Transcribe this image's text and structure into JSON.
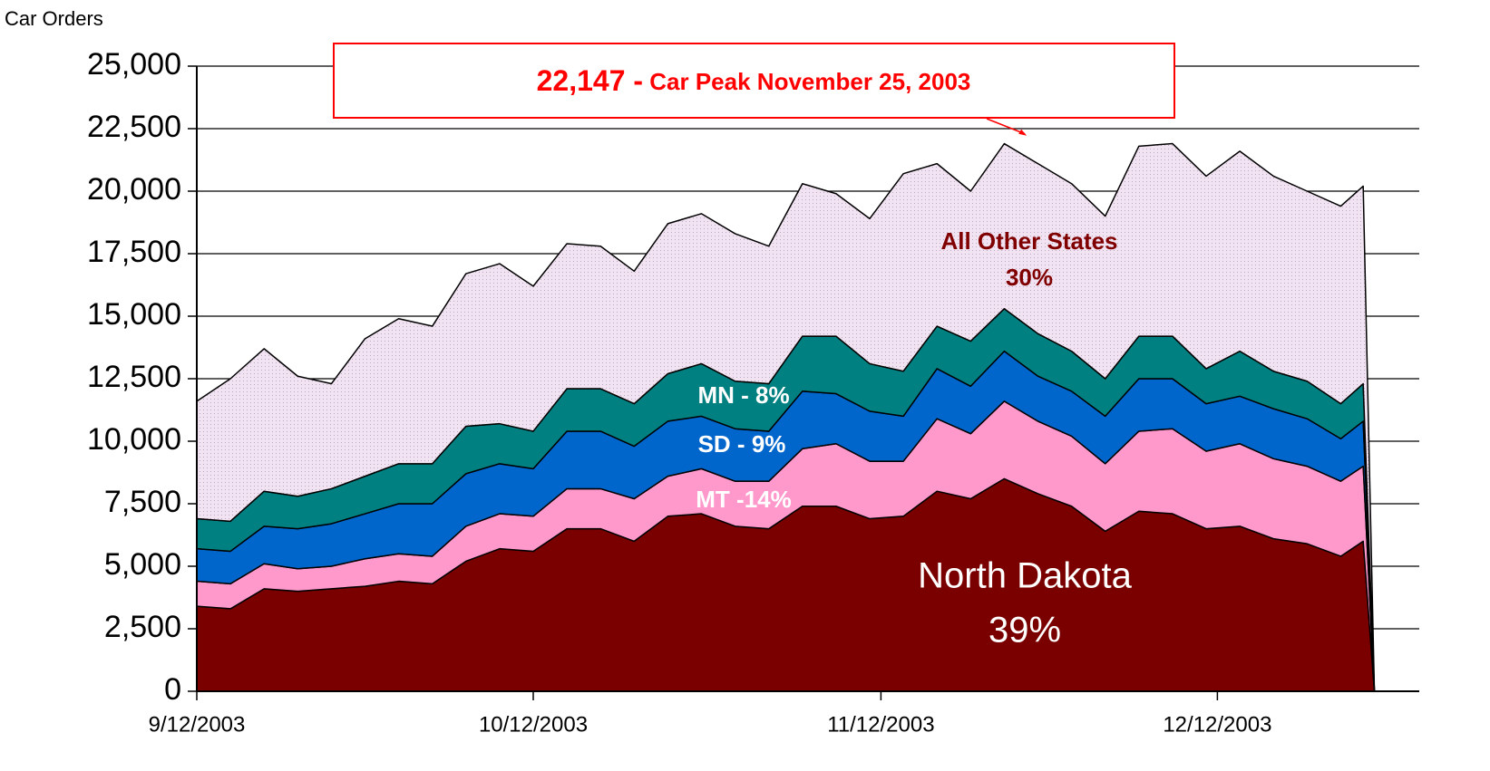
{
  "chart_data": {
    "type": "stacked_area",
    "y_axis_label": "Car Orders",
    "x": [
      "9/12/2003",
      "9/15/2003",
      "9/18/2003",
      "9/21/2003",
      "9/24/2003",
      "9/27/2003",
      "9/30/2003",
      "10/3/2003",
      "10/6/2003",
      "10/9/2003",
      "10/12/2003",
      "10/15/2003",
      "10/18/2003",
      "10/21/2003",
      "10/24/2003",
      "10/27/2003",
      "10/30/2003",
      "11/2/2003",
      "11/5/2003",
      "11/8/2003",
      "11/11/2003",
      "11/14/2003",
      "11/17/2003",
      "11/20/2003",
      "11/23/2003",
      "11/26/2003",
      "11/29/2003",
      "12/2/2003",
      "12/5/2003",
      "12/8/2003",
      "12/11/2003",
      "12/14/2003",
      "12/17/2003",
      "12/20/2003",
      "12/23/2003",
      "12/25/2003",
      "12/26/2003"
    ],
    "series": [
      {
        "name": "North Dakota",
        "share": "39%",
        "color": "#7a0000",
        "label_color": "#ffffff",
        "values": [
          3400,
          3300,
          4100,
          4000,
          4100,
          4200,
          4400,
          4300,
          5200,
          5700,
          5600,
          6500,
          6500,
          6000,
          7000,
          7100,
          6600,
          6500,
          7400,
          7400,
          6900,
          7000,
          8000,
          7700,
          8500,
          7900,
          7400,
          6400,
          7200,
          7100,
          6500,
          6600,
          6100,
          5900,
          5400,
          6000,
          0
        ]
      },
      {
        "name": "MT -14%",
        "color": "#ff99cc",
        "label_color": "#ffffff",
        "values": [
          1000,
          1000,
          1000,
          900,
          900,
          1100,
          1100,
          1100,
          1400,
          1400,
          1400,
          1600,
          1600,
          1700,
          1600,
          1800,
          1800,
          1900,
          2300,
          2500,
          2300,
          2200,
          2900,
          2600,
          3100,
          2900,
          2800,
          2700,
          3200,
          3400,
          3100,
          3300,
          3200,
          3100,
          3000,
          3000,
          0
        ]
      },
      {
        "name": "SD - 9%",
        "color": "#0066cc",
        "label_color": "#ffffff",
        "values": [
          1300,
          1300,
          1500,
          1600,
          1700,
          1800,
          2000,
          2100,
          2100,
          2000,
          1900,
          2300,
          2300,
          2100,
          2200,
          2100,
          2100,
          2000,
          2300,
          2000,
          2000,
          1800,
          2000,
          1900,
          2000,
          1800,
          1800,
          1900,
          2100,
          2000,
          1900,
          1900,
          2000,
          1900,
          1700,
          1800,
          0
        ]
      },
      {
        "name": "MN - 8%",
        "color": "#008080",
        "label_color": "#ffffff",
        "values": [
          1200,
          1200,
          1400,
          1300,
          1400,
          1500,
          1600,
          1600,
          1900,
          1600,
          1500,
          1700,
          1700,
          1700,
          1900,
          2100,
          1900,
          1900,
          2200,
          2300,
          1900,
          1800,
          1700,
          1800,
          1700,
          1700,
          1600,
          1500,
          1700,
          1700,
          1400,
          1800,
          1500,
          1500,
          1400,
          1500,
          0
        ]
      },
      {
        "name": "All Other States",
        "share": "30%",
        "color": "#f1e3f1",
        "label_color": "#800000",
        "values": [
          4700,
          5700,
          5700,
          4800,
          4200,
          5500,
          5800,
          5500,
          6100,
          6400,
          5800,
          5800,
          5700,
          5300,
          6000,
          6000,
          5900,
          5500,
          6100,
          5700,
          5800,
          7900,
          6500,
          6000,
          6600,
          6800,
          6700,
          6500,
          7600,
          7700,
          7700,
          8000,
          7800,
          7600,
          7900,
          7900,
          0
        ]
      }
    ],
    "annotation": {
      "value_label": "22,147 -",
      "text": "Car Peak November 25, 2003",
      "x": "11/25/2003",
      "value": 22147,
      "color": "#ff0000"
    },
    "xlim": [
      "9/12/2003",
      "12/30/2003"
    ],
    "xticks": [
      "9/12/2003",
      "10/12/2003",
      "11/12/2003",
      "12/12/2003"
    ],
    "ylim": [
      0,
      25000
    ],
    "yticks": [
      0,
      {
        "value": 2500,
        "label": "2,500"
      },
      {
        "value": 5000,
        "label": "5,000"
      },
      {
        "value": 7500,
        "label": "7,500"
      },
      {
        "value": 10000,
        "label": "10,000"
      },
      {
        "value": 12500,
        "label": "12,500"
      },
      {
        "value": 15000,
        "label": "15,000"
      },
      {
        "value": 17500,
        "label": "17,500"
      },
      {
        "value": 20000,
        "label": "20,000"
      },
      {
        "value": 22500,
        "label": "22,500"
      },
      {
        "value": 25000,
        "label": "25,000"
      }
    ],
    "grid": true
  }
}
